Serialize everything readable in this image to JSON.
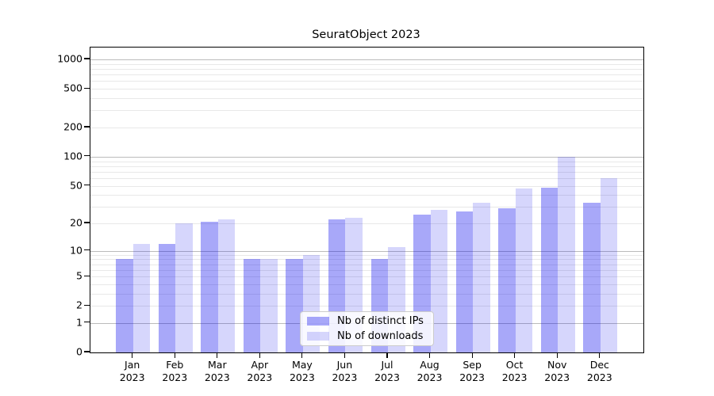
{
  "chart_data": {
    "type": "bar",
    "title": "SeuratObject 2023",
    "year": "2023",
    "categories": [
      "Jan 2023",
      "Feb 2023",
      "Mar 2023",
      "Apr 2023",
      "May 2023",
      "Jun 2023",
      "Jul 2023",
      "Aug 2023",
      "Sep 2023",
      "Oct 2023",
      "Nov 2023",
      "Dec 2023"
    ],
    "months": [
      "Jan",
      "Feb",
      "Mar",
      "Apr",
      "May",
      "Jun",
      "Jul",
      "Aug",
      "Sep",
      "Oct",
      "Nov",
      "Dec"
    ],
    "series": [
      {
        "name": "Nb of distinct IPs",
        "color": "rgba(0,0,238,0.34)",
        "values": [
          8,
          12,
          21,
          8,
          8,
          22,
          8,
          25,
          27,
          29,
          48,
          33
        ]
      },
      {
        "name": "Nb of downloads",
        "color": "rgba(0,0,238,0.16)",
        "values": [
          12,
          20,
          22,
          8,
          9,
          23,
          11,
          28,
          33,
          47,
          100,
          60
        ]
      }
    ],
    "xlabel": "",
    "ylabel": "",
    "yscale": "log1p",
    "ylim": [
      0,
      1325
    ],
    "yticks": [
      0,
      1,
      2,
      5,
      10,
      20,
      50,
      100,
      200,
      500,
      1000
    ],
    "major_grid_values": [
      1,
      10,
      100,
      1000
    ],
    "grid": "on",
    "legend_position": "lower center",
    "colors": {
      "bar_distinct_ips": "rgba(0,0,238,0.34)",
      "bar_downloads": "rgba(0,0,238,0.16)",
      "major_grid": "#bbbbbb",
      "minor_grid": "#e8e8e8",
      "spine": "#000000",
      "text": "#000000",
      "legend_border": "#cccccc"
    }
  }
}
